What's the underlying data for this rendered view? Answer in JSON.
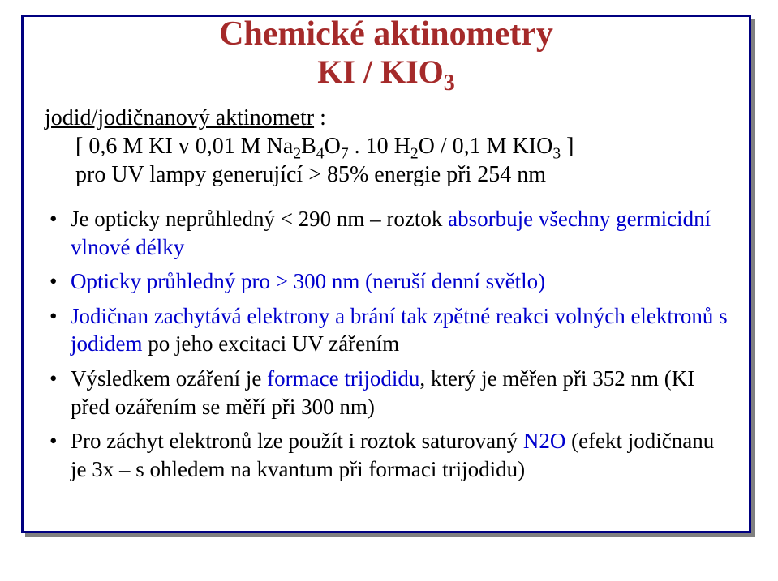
{
  "slide": {
    "title_main": "Chemické aktinometry",
    "title_sub_left": "KI / KIO",
    "title_sub_subscript": "3",
    "intro_underlined": "jodid/jodičnanový  aktinometr",
    "intro_colon": " :",
    "intro_line2_a": "[ 0,6 M  KI  v 0,01 M  Na",
    "intro_line2_sub1": "2",
    "intro_line2_b": "B",
    "intro_line2_sub2": "4",
    "intro_line2_c": "O",
    "intro_line2_sub3": "7",
    "intro_line2_d": " . 10 H",
    "intro_line2_sub4": "2",
    "intro_line2_e": "O / 0,1 M  KIO",
    "intro_line2_sub5": "3",
    "intro_line2_f": " ]",
    "intro_line3": "pro UV lampy  generující > 85% energie při 254 nm",
    "bullets": {
      "b1_a": "Je opticky neprůhledný  <  290 nm – roztok ",
      "b1_b": "absorbuje všechny germicidní vlnové délky",
      "b2": "Opticky průhledný pro  > 300 nm  (neruší denní světlo)",
      "b3_a": "Jodičnan  zachytává  elektrony a brání tak zpětné reakci volných elektronů  s ",
      "b3_b": "jodidem",
      "b3_c": "  po jeho excitaci UV zářením",
      "b4_a": "Výsledkem ozáření je ",
      "b4_b": "formace  trijodidu",
      "b4_c": ", který je měřen při 352 nm (KI před ozářením se měří při 300 nm)",
      "b5_a": "Pro záchyt elektronů lze použít i roztok saturovaný ",
      "b5_b": "N2O",
      "b5_c": " (efekt jodičnanu je 3x – s ohledem na kvantum při formaci trijodidu)"
    }
  },
  "colors": {
    "frame_border": "#000080",
    "frame_shadow": "#808080",
    "title": "#a52a2a",
    "body_text": "#000000",
    "accent_blue": "#0000cd",
    "background": "#ffffff"
  }
}
